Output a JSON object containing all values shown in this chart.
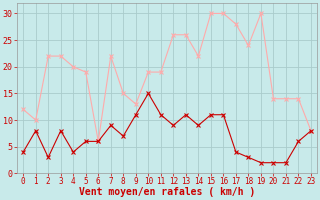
{
  "x": [
    0,
    1,
    2,
    3,
    4,
    5,
    6,
    7,
    8,
    9,
    10,
    11,
    12,
    13,
    14,
    15,
    16,
    17,
    18,
    19,
    20,
    21,
    22,
    23
  ],
  "wind_avg": [
    4,
    8,
    3,
    8,
    4,
    6,
    6,
    9,
    7,
    11,
    15,
    11,
    9,
    11,
    9,
    11,
    11,
    4,
    3,
    2,
    2,
    2,
    6,
    8
  ],
  "wind_gust": [
    12,
    10,
    22,
    22,
    20,
    19,
    6,
    22,
    15,
    13,
    19,
    19,
    26,
    26,
    22,
    30,
    30,
    28,
    24,
    30,
    14,
    14,
    14,
    8
  ],
  "avg_color": "#cc0000",
  "gust_color": "#ffaaaa",
  "bg_color": "#c8eaea",
  "grid_color": "#aacccc",
  "xlabel": "Vent moyen/en rafales ( km/h )",
  "xlabel_color": "#cc0000",
  "tick_color": "#cc0000",
  "yticks": [
    0,
    5,
    10,
    15,
    20,
    25,
    30
  ],
  "ylim": [
    0,
    32
  ],
  "xlim": [
    -0.5,
    23.5
  ],
  "tick_fontsize": 5.5,
  "xlabel_fontsize": 7.0
}
